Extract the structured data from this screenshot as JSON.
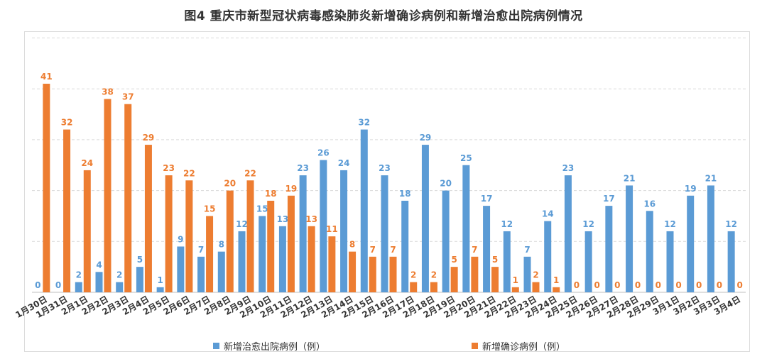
{
  "chart_data": {
    "type": "bar",
    "title": "图4   重庆市新型冠状病毒感染肺炎新增确诊病例和新增治愈出院病例情况",
    "categories": [
      "1月30日",
      "1月31日",
      "2月1日",
      "2月2日",
      "2月3日",
      "2月4日",
      "2月5日",
      "2月6日",
      "2月7日",
      "2月8日",
      "2月9日",
      "2月10日",
      "2月11日",
      "2月12日",
      "2月13日",
      "2月14日",
      "2月15日",
      "2月16日",
      "2月17日",
      "2月18日",
      "2月19日",
      "2月20日",
      "2月21日",
      "2月22日",
      "2月23日",
      "2月24日",
      "2月25日",
      "2月26日",
      "2月27日",
      "2月28日",
      "2月29日",
      "3月1日",
      "3月2日",
      "3月3日",
      "3月4日"
    ],
    "series": [
      {
        "name": "新增治愈出院病例（例）",
        "color": "#5b9bd5",
        "values": [
          0,
          0,
          2,
          4,
          2,
          5,
          1,
          9,
          7,
          8,
          12,
          15,
          13,
          23,
          26,
          24,
          32,
          23,
          18,
          29,
          20,
          25,
          17,
          12,
          7,
          14,
          23,
          12,
          17,
          21,
          16,
          12,
          19,
          21,
          12
        ]
      },
      {
        "name": "新增确诊病例（例）",
        "color": "#ed7d31",
        "values": [
          41,
          32,
          24,
          38,
          37,
          29,
          23,
          22,
          15,
          20,
          22,
          18,
          19,
          13,
          11,
          8,
          7,
          7,
          2,
          2,
          5,
          7,
          5,
          1,
          2,
          1,
          0,
          0,
          0,
          0,
          0,
          0,
          0,
          0,
          0
        ]
      }
    ],
    "ylim": [
      0,
      50
    ],
    "grid": true,
    "legend": "bottom"
  }
}
